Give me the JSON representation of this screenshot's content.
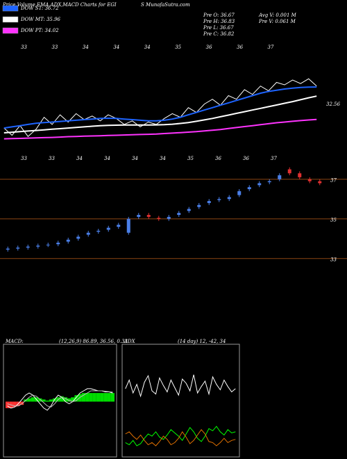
{
  "chart_data": [
    {
      "type": "line",
      "title": "Price,Volume,EMA,ADX,MACD Charts for EGI",
      "subtitle": "S MunafaSutra.com",
      "annotations": [
        "Pre O: 36.67",
        "Pre H: 36.83",
        "Pre L: 36.67",
        "Pre C: 36.82",
        "Avg V: 0.001 M",
        "Pre V: 0.061 M"
      ],
      "price_label": 32.56,
      "date_labels": [
        "33",
        "33",
        "34",
        "34",
        "34",
        "35",
        "36",
        "36",
        "37"
      ],
      "ylim": [
        31.8,
        40.2
      ],
      "series": [
        {
          "color": "#ffffff",
          "values": [
            33.3,
            32.7,
            33.5,
            32.6,
            33.2,
            34.2,
            33.6,
            34.4,
            33.8,
            34.5,
            34.0,
            34.3,
            33.9,
            34.4,
            34.1,
            33.6,
            33.9,
            33.4,
            33.8,
            33.6,
            34.1,
            34.5,
            34.2,
            35.0,
            34.6,
            35.3,
            35.7,
            35.2,
            36.0,
            35.7,
            36.5,
            36.1,
            36.8,
            36.4,
            37.1,
            36.9,
            37.3,
            37.0,
            37.4,
            36.8
          ]
        },
        {
          "name": "DOW ST: 36.72",
          "color": "#1e64ff",
          "values": [
            33.3,
            33.4,
            33.5,
            33.6,
            33.7,
            33.75,
            33.8,
            33.85,
            33.9,
            33.95,
            34.0,
            34.05,
            34.1,
            34.12,
            34.1,
            34.05,
            34.0,
            33.95,
            33.9,
            33.9,
            33.95,
            34.05,
            34.2,
            34.4,
            34.6,
            34.8,
            35.0,
            35.2,
            35.4,
            35.6,
            35.8,
            36.0,
            36.2,
            36.35,
            36.45,
            36.55,
            36.62,
            36.68,
            36.71,
            36.72
          ]
        },
        {
          "name": "DOW MT: 35.96",
          "color": "#ffffff",
          "values": [
            32.9,
            32.95,
            33.0,
            33.05,
            33.1,
            33.15,
            33.2,
            33.25,
            33.3,
            33.35,
            33.4,
            33.45,
            33.5,
            33.52,
            33.54,
            33.55,
            33.55,
            33.55,
            33.55,
            33.56,
            33.58,
            33.62,
            33.68,
            33.76,
            33.86,
            33.98,
            34.1,
            34.24,
            34.38,
            34.52,
            34.66,
            34.8,
            34.94,
            35.08,
            35.22,
            35.36,
            35.5,
            35.66,
            35.82,
            35.96
          ]
        },
        {
          "name": "DOW PT: 34.02",
          "color": "#ff33ff",
          "values": [
            32.4,
            32.42,
            32.44,
            32.46,
            32.48,
            32.5,
            32.52,
            32.55,
            32.58,
            32.6,
            32.62,
            32.64,
            32.66,
            32.68,
            32.7,
            32.72,
            32.74,
            32.76,
            32.78,
            32.8,
            32.84,
            32.88,
            32.92,
            32.96,
            33.0,
            33.06,
            33.12,
            33.18,
            33.26,
            33.34,
            33.42,
            33.5,
            33.58,
            33.66,
            33.74,
            33.8,
            33.86,
            33.92,
            33.97,
            34.02
          ]
        }
      ]
    },
    {
      "type": "candlestick",
      "ylim": [
        29.2,
        38.5
      ],
      "yticks": [
        37,
        35,
        33
      ],
      "grid": true,
      "grid_color": "#8b4513",
      "up_color": "#4a7fe8",
      "down_color": "#e03030",
      "date_labels": [
        "33",
        "33",
        "34",
        "34",
        "34",
        "34",
        "35",
        "36",
        "36",
        "37"
      ],
      "open": [
        33.45,
        33.5,
        33.55,
        33.6,
        33.68,
        33.72,
        33.85,
        34.0,
        34.2,
        34.35,
        34.45,
        34.6,
        34.3,
        35.1,
        35.2,
        35.05,
        35.0,
        35.2,
        35.4,
        35.6,
        35.8,
        35.95,
        36.0,
        36.2,
        36.5,
        36.7,
        36.85,
        37.0,
        37.5,
        37.3,
        37.0,
        36.9
      ],
      "high": [
        33.6,
        33.65,
        33.7,
        33.75,
        33.8,
        33.9,
        34.05,
        34.2,
        34.4,
        34.5,
        34.65,
        34.8,
        35.1,
        35.3,
        35.3,
        35.15,
        35.2,
        35.4,
        35.6,
        35.8,
        36.0,
        36.1,
        36.2,
        36.5,
        36.7,
        36.9,
        37.0,
        37.3,
        37.6,
        37.4,
        37.1,
        37.0
      ],
      "low": [
        33.35,
        33.4,
        33.45,
        33.5,
        33.58,
        33.62,
        33.75,
        33.9,
        34.1,
        34.25,
        34.35,
        34.5,
        34.2,
        35.0,
        35.0,
        34.9,
        34.9,
        35.1,
        35.3,
        35.5,
        35.7,
        35.85,
        35.9,
        36.1,
        36.4,
        36.6,
        36.75,
        36.9,
        37.2,
        37.0,
        36.8,
        36.7
      ],
      "close": [
        33.5,
        33.55,
        33.6,
        33.65,
        33.7,
        33.8,
        33.95,
        34.1,
        34.3,
        34.4,
        34.55,
        34.7,
        35.0,
        35.2,
        35.1,
        35.0,
        35.1,
        35.3,
        35.5,
        35.7,
        35.9,
        36.0,
        36.1,
        36.4,
        36.6,
        36.8,
        36.9,
        37.2,
        37.3,
        37.1,
        36.9,
        36.8
      ]
    },
    {
      "type": "macd",
      "title": "MACD:",
      "subtitle": "(12,26,9) 86.89, 36.56, 0.33",
      "ylim": [
        -2.5,
        2.5
      ],
      "histogram": {
        "pos_color": "#00dd00",
        "neg_color": "#ff3333",
        "values": [
          -0.3,
          -0.3,
          -0.25,
          -0.2,
          -0.15,
          0.1,
          0.15,
          0.2,
          0.2,
          0.15,
          0.1,
          0.05,
          0.1,
          0.15,
          0.2,
          0.25,
          0.2,
          0.15,
          0.2,
          0.3,
          0.35,
          0.4,
          0.4,
          0.4,
          0.4,
          0.4,
          0.4,
          0.4,
          0.4,
          0.4
        ]
      },
      "series": [
        {
          "color": "#ffffff",
          "values": [
            -0.2,
            -0.3,
            -0.25,
            -0.1,
            0.1,
            0.3,
            0.4,
            0.3,
            0.1,
            -0.1,
            -0.3,
            -0.4,
            -0.2,
            0.1,
            0.3,
            0.2,
            0.0,
            -0.1,
            0.0,
            0.2,
            0.4,
            0.5,
            0.6,
            0.6,
            0.55,
            0.5,
            0.5,
            0.45,
            0.45,
            0.4
          ]
        },
        {
          "color": "#bbbbbb",
          "values": [
            -0.1,
            -0.15,
            -0.2,
            -0.2,
            -0.1,
            0.05,
            0.2,
            0.3,
            0.25,
            0.1,
            -0.05,
            -0.2,
            -0.25,
            -0.1,
            0.1,
            0.2,
            0.15,
            0.05,
            0.0,
            0.05,
            0.2,
            0.3,
            0.4,
            0.5,
            0.5,
            0.5,
            0.5,
            0.48,
            0.46,
            0.44
          ]
        }
      ]
    },
    {
      "type": "line",
      "title": "ADX",
      "subtitle": "(14 day) 12, -42, 34",
      "ylim": [
        0,
        100
      ],
      "series": [
        {
          "color": "#ffffff",
          "values": [
            62,
            70,
            58,
            66,
            55,
            68,
            74,
            60,
            57,
            72,
            65,
            59,
            70,
            63,
            56,
            71,
            67,
            60,
            75,
            58,
            64,
            69,
            57,
            73,
            66,
            61,
            70,
            64,
            59,
            62
          ]
        },
        {
          "color": "#00ff00",
          "values": [
            12,
            10,
            14,
            9,
            11,
            16,
            20,
            18,
            22,
            17,
            15,
            19,
            24,
            21,
            18,
            14,
            20,
            26,
            22,
            16,
            13,
            18,
            25,
            23,
            27,
            22,
            19,
            24,
            21,
            22
          ]
        },
        {
          "color": "#e07000",
          "values": [
            20,
            22,
            18,
            15,
            19,
            14,
            10,
            12,
            9,
            13,
            18,
            15,
            10,
            12,
            16,
            22,
            17,
            11,
            14,
            19,
            24,
            20,
            13,
            12,
            9,
            12,
            16,
            12,
            14,
            15
          ]
        }
      ]
    }
  ]
}
